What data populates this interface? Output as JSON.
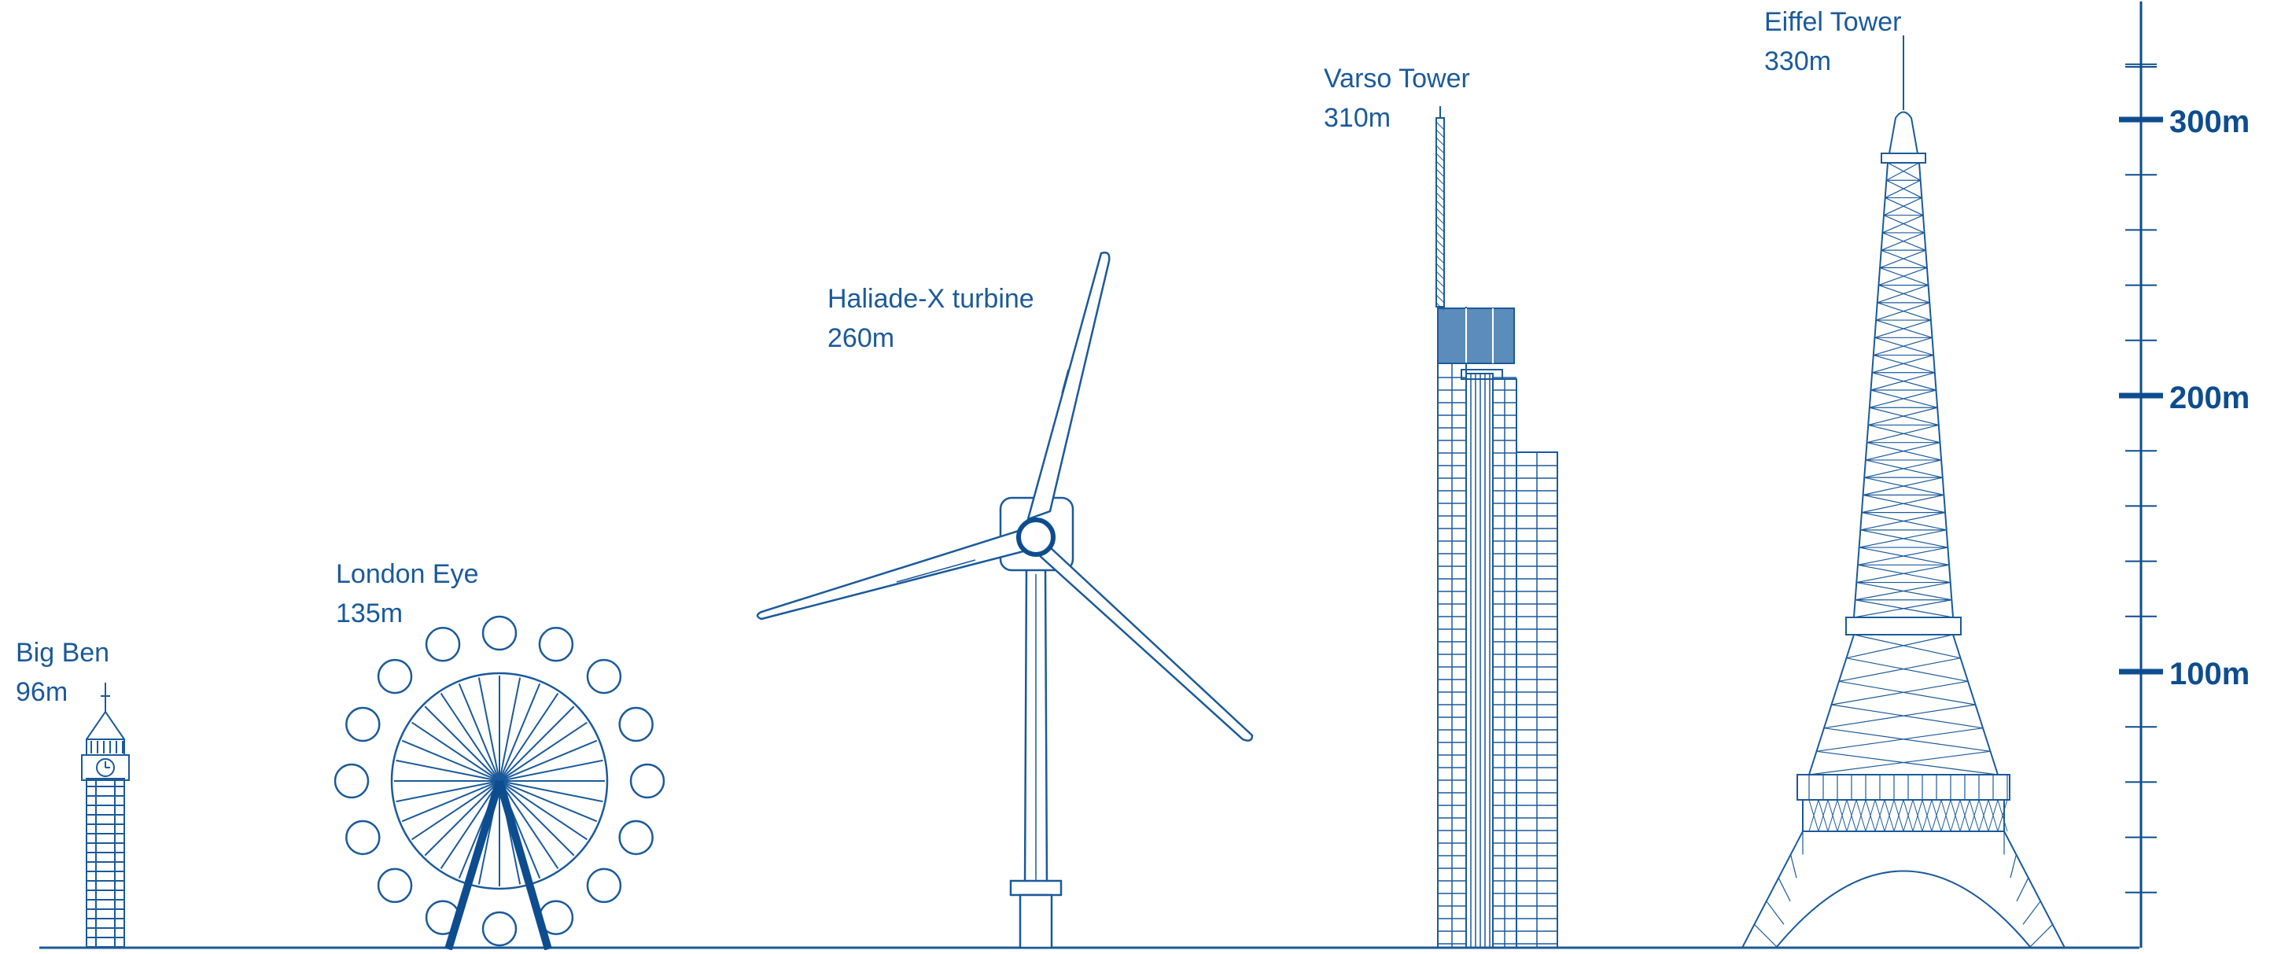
{
  "landmarks": [
    {
      "id": "big-ben",
      "name": "Big Ben",
      "height": "96m",
      "meters": 96
    },
    {
      "id": "london-eye",
      "name": "London Eye",
      "height": "135m",
      "meters": 135
    },
    {
      "id": "haliade-x",
      "name": "Haliade-X turbine",
      "height": "260m",
      "meters": 260
    },
    {
      "id": "varso",
      "name": "Varso Tower",
      "height": "310m",
      "meters": 310
    },
    {
      "id": "eiffel",
      "name": "Eiffel Tower",
      "height": "330m",
      "meters": 330
    }
  ],
  "scale": {
    "labels": [
      "100m",
      "200m",
      "300m"
    ],
    "major_values": [
      100,
      200,
      300
    ],
    "minor_step": 20,
    "max": 330
  },
  "colors": {
    "line": "#1b5a9a",
    "dark": "#0d4d8f",
    "fill": "#3f78ad"
  }
}
